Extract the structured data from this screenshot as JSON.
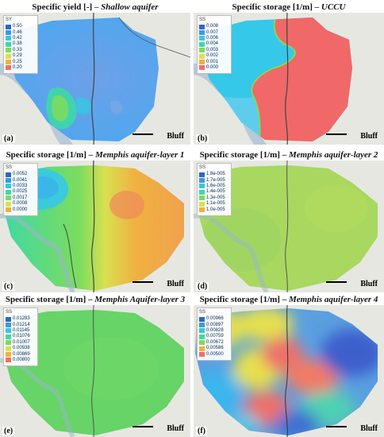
{
  "panels": [
    {
      "title_pre": "Specific yield [-] – ",
      "title_it": "Shallow aquifer",
      "legend_title": "SY",
      "legend": [
        {
          "label": "0.50",
          "color": "#2e66c8"
        },
        {
          "label": "0.46",
          "color": "#3c9ae0"
        },
        {
          "label": "0.42",
          "color": "#36c8e0"
        },
        {
          "label": "0.38",
          "color": "#3ed8a6"
        },
        {
          "label": "0.33",
          "color": "#7cdc5e"
        },
        {
          "label": "0.29",
          "color": "#d8e050"
        },
        {
          "label": "0.25",
          "color": "#f0b040"
        },
        {
          "label": "0.20",
          "color": "#f07064"
        }
      ],
      "label": "(a)",
      "scale_label": "Bluff"
    },
    {
      "title_pre": "Specific storage [1/m] – ",
      "title_it": "UCCU",
      "legend_title": "SS",
      "legend": [
        {
          "label": "0.008",
          "color": "#2e66c8"
        },
        {
          "label": "0.007",
          "color": "#3c9ae0"
        },
        {
          "label": "0.006",
          "color": "#36c8e0"
        },
        {
          "label": "0.004",
          "color": "#3ed8a6"
        },
        {
          "label": "0.003",
          "color": "#7cdc5e"
        },
        {
          "label": "0.002",
          "color": "#d8e050"
        },
        {
          "label": "0.001",
          "color": "#f0b040"
        },
        {
          "label": "0.000",
          "color": "#f07064"
        }
      ],
      "label": "(b)",
      "scale_label": "Bluff"
    },
    {
      "title_pre": "Specific storage [1/m] – ",
      "title_it": "Memphis aquifer-layer 1",
      "legend_title": "SS",
      "legend": [
        {
          "label": "0.0052",
          "color": "#2e66c8"
        },
        {
          "label": "0.0041",
          "color": "#3c9ae0"
        },
        {
          "label": "0.0033",
          "color": "#36c8e0"
        },
        {
          "label": "0.0025",
          "color": "#3ed8a6"
        },
        {
          "label": "0.0017",
          "color": "#7cdc5e"
        },
        {
          "label": "0.0008",
          "color": "#d8e050"
        },
        {
          "label": "0.0000",
          "color": "#f0b040"
        }
      ],
      "label": "(c)",
      "scale_label": "Bluff"
    },
    {
      "title_pre": "Specific storage [1/m] – ",
      "title_it": "Memphis aquifer-layer 2",
      "legend_title": "SS",
      "legend": [
        {
          "label": "1.8e-005",
          "color": "#2e66c8"
        },
        {
          "label": "1.7e-005",
          "color": "#3c9ae0"
        },
        {
          "label": "1.6e-005",
          "color": "#36c8e0"
        },
        {
          "label": "1.4e-005",
          "color": "#3ed8a6"
        },
        {
          "label": "1.3e-005",
          "color": "#7cdc5e"
        },
        {
          "label": "1.1e-005",
          "color": "#d8e050"
        },
        {
          "label": "1.0e-005",
          "color": "#f0b040"
        }
      ],
      "label": "(d)",
      "scale_label": "Bluff"
    },
    {
      "title_pre": "Specific storage [1/m] – ",
      "title_it": "Memphis Aquifer-layer 3",
      "legend_title": "SS",
      "legend": [
        {
          "label": "0.01283",
          "color": "#2e66c8"
        },
        {
          "label": "0.01214",
          "color": "#3c9ae0"
        },
        {
          "label": "0.01145",
          "color": "#36c8e0"
        },
        {
          "label": "0.01076",
          "color": "#3ed8a6"
        },
        {
          "label": "0.01007",
          "color": "#7cdc5e"
        },
        {
          "label": "0.00938",
          "color": "#d8e050"
        },
        {
          "label": "0.00869",
          "color": "#f0b040"
        },
        {
          "label": "0.00800",
          "color": "#f07064"
        }
      ],
      "label": "(e)",
      "scale_label": "Bluff"
    },
    {
      "title_pre": "Specific storage [1/m] – ",
      "title_it": "Memphis aquifer-layer 4",
      "legend_title": "SS",
      "legend": [
        {
          "label": "0.00966",
          "color": "#2e66c8"
        },
        {
          "label": "0.00897",
          "color": "#3c9ae0"
        },
        {
          "label": "0.00828",
          "color": "#36c8e0"
        },
        {
          "label": "0.00759",
          "color": "#3ed8a6"
        },
        {
          "label": "0.00672",
          "color": "#7cdc5e"
        },
        {
          "label": "0.00586",
          "color": "#f0b040"
        },
        {
          "label": "0.00500",
          "color": "#f07064"
        }
      ],
      "label": "(f)",
      "scale_label": "Bluff"
    }
  ]
}
